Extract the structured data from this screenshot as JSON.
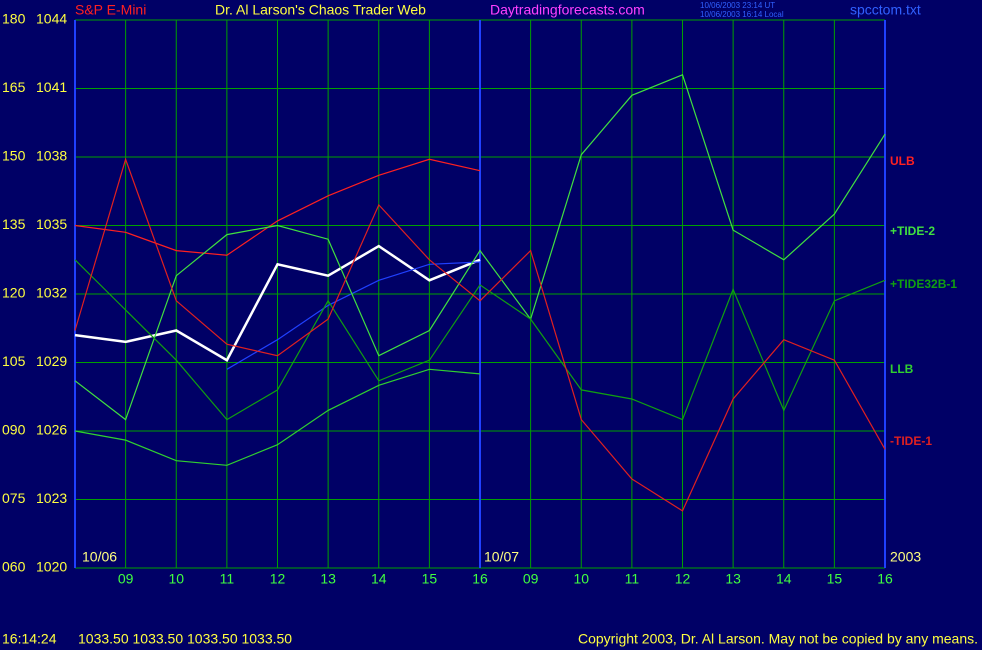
{
  "chart_data": {
    "type": "line",
    "header": {
      "left": "S&P E-Mini",
      "title": "Dr. Al Larson's Chaos Trader Web",
      "site": "Daytradingforecasts.com",
      "stamp_ut": "10/06/2003 23:14 UT",
      "stamp_local": "10/06/2003 16:14 Local",
      "file": "spcctom.txt"
    },
    "footer": {
      "time": "16:14:24",
      "quote": "1033.50 1033.50 1033.50 1033.50",
      "copyright": "Copyright 2003, Dr. Al Larson. May not be copied by any means."
    },
    "date_labels": [
      "10/06",
      "10/07",
      "2003"
    ],
    "x": [
      0,
      1,
      2,
      3,
      4,
      5,
      6,
      7,
      8,
      9,
      10,
      11,
      12,
      13,
      14,
      15,
      16
    ],
    "xlim": [
      0,
      16
    ],
    "xticks": [
      {
        "value": 1,
        "label": "09"
      },
      {
        "value": 2,
        "label": "10"
      },
      {
        "value": 3,
        "label": "11"
      },
      {
        "value": 4,
        "label": "12"
      },
      {
        "value": 5,
        "label": "13"
      },
      {
        "value": 6,
        "label": "14"
      },
      {
        "value": 7,
        "label": "15"
      },
      {
        "value": 8,
        "label": "16"
      },
      {
        "value": 9,
        "label": "09"
      },
      {
        "value": 10,
        "label": "10"
      },
      {
        "value": 11,
        "label": "11"
      },
      {
        "value": 12,
        "label": "12"
      },
      {
        "value": 13,
        "label": "13"
      },
      {
        "value": 14,
        "label": "14"
      },
      {
        "value": 15,
        "label": "15"
      },
      {
        "value": 16,
        "label": "16"
      }
    ],
    "ylim": [
      1020,
      1044
    ],
    "yticks": [
      1020,
      1023,
      1026,
      1029,
      1032,
      1035,
      1038,
      1041,
      1044
    ],
    "y2lim": [
      60,
      180
    ],
    "y2ticks": [
      {
        "value": 60,
        "label": "060"
      },
      {
        "value": 75,
        "label": "075"
      },
      {
        "value": 90,
        "label": "090"
      },
      105,
      120,
      135,
      150,
      165,
      180
    ],
    "grid": true,
    "series": [
      {
        "color": "#ffffff",
        "values": [
          1030.2,
          1029.9,
          1030.4,
          1029.1,
          1033.3,
          1032.8,
          1034.1,
          1032.6,
          1033.5,
          null,
          null,
          null,
          null,
          null,
          null,
          null,
          null
        ]
      },
      {
        "color": "#2040ff",
        "values": [
          null,
          null,
          null,
          1028.7,
          1030.0,
          1031.5,
          1032.6,
          1033.3,
          1033.4,
          null,
          null,
          null,
          null,
          null,
          null,
          null,
          null
        ]
      },
      {
        "name": "ULB",
        "color": "#ff2020",
        "values": [
          1035.0,
          1034.7,
          1033.9,
          1033.7,
          1035.2,
          1036.3,
          1037.2,
          1037.9,
          1037.4,
          null,
          null,
          null,
          null,
          null,
          null,
          null,
          null
        ]
      },
      {
        "name": "+TIDE-2",
        "color": "#40e040",
        "values": [
          1028.2,
          1026.5,
          1032.8,
          1034.6,
          1035.0,
          1034.4,
          1029.3,
          1030.4,
          1033.9,
          1030.9,
          1038.1,
          1040.7,
          1041.6,
          1034.8,
          1033.5,
          1035.5,
          1039.0
        ]
      },
      {
        "name": "+TIDE32B-1",
        "color": "#10a010",
        "values": [
          1033.5,
          1031.3,
          1029.1,
          1026.5,
          1027.8,
          1031.7,
          1028.2,
          1029.1,
          1032.4,
          1030.9,
          1027.8,
          1027.4,
          1026.5,
          1032.2,
          1026.9,
          1031.7,
          1032.6
        ]
      },
      {
        "name": "LLB",
        "color": "#30d030",
        "values": [
          1026.0,
          1025.6,
          1024.7,
          1024.5,
          1025.4,
          1026.9,
          1028.0,
          1028.7,
          1028.5,
          null,
          null,
          null,
          null,
          null,
          null,
          null,
          null
        ]
      },
      {
        "name": "-TIDE-1",
        "color": "#e02020",
        "values": [
          1030.4,
          1037.9,
          1031.7,
          1029.8,
          1029.3,
          1030.9,
          1035.9,
          1033.5,
          1031.7,
          1033.9,
          1026.5,
          1023.9,
          1022.5,
          1027.4,
          1030.0,
          1029.1,
          1025.2
        ]
      }
    ]
  }
}
